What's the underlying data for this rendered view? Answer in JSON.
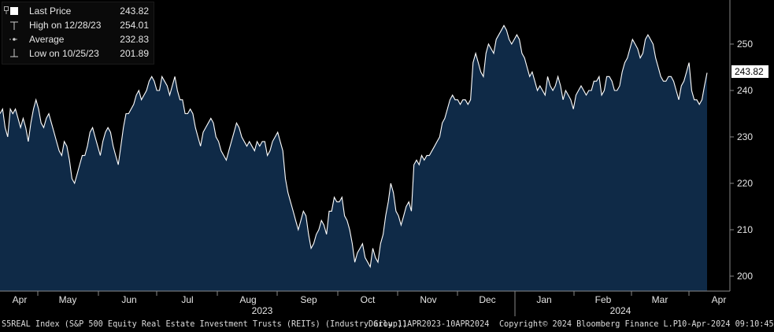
{
  "legend": {
    "last_price_label": "Last Price",
    "last_price_value": "243.82",
    "high_label": "High on 12/28/23",
    "high_value": "254.01",
    "average_label": "Average",
    "average_value": "232.83",
    "low_label": "Low on 10/25/23",
    "low_value": "201.89"
  },
  "last_tag": "243.82",
  "footer": {
    "title": "S5REAL Index (S&P 500 Equity Real Estate Investment Trusts (REITs) (Industry Group))",
    "range": "Daily 11APR2023-10APR2024",
    "copyright": "Copyright© 2024 Bloomberg Finance L.P.",
    "timestamp": "10-Apr-2024 09:10:45"
  },
  "colors": {
    "area_fill": "#0f2a47",
    "line": "#ffffff",
    "background": "#000000",
    "grid": "#4a4a4a"
  },
  "chart_data": {
    "type": "area",
    "ylim": [
      195,
      260
    ],
    "yticks": [
      200,
      210,
      220,
      230,
      240,
      250
    ],
    "month_labels": [
      "Apr",
      "May",
      "Jun",
      "Jul",
      "Aug",
      "Sep",
      "Oct",
      "Nov",
      "Dec",
      "Jan",
      "Feb",
      "Mar",
      "Apr"
    ],
    "year_labels": [
      "2023",
      "2024"
    ],
    "grid": false,
    "series": [
      {
        "values": [
          235,
          236,
          232,
          230,
          236,
          235,
          236,
          234,
          232,
          234,
          232,
          229,
          233,
          236,
          238,
          236,
          233,
          232,
          234,
          235,
          233,
          231,
          229,
          227,
          226,
          229,
          228,
          225,
          221,
          220,
          222,
          224,
          226,
          226,
          228,
          231,
          232,
          230,
          228,
          226,
          229,
          231,
          232,
          231,
          228,
          226,
          224,
          228,
          232,
          235,
          235,
          236,
          237,
          239,
          240,
          238,
          239,
          240,
          242,
          243,
          242,
          240,
          240,
          243,
          242,
          241,
          239,
          241,
          243,
          240,
          238,
          238,
          235,
          235,
          236,
          235,
          232,
          230,
          228,
          231,
          232,
          233,
          234,
          233,
          230,
          229,
          227,
          226,
          225,
          227,
          229,
          231,
          233,
          232,
          230,
          229,
          228,
          229,
          228,
          227,
          229,
          228,
          229,
          229,
          226,
          227,
          229,
          230,
          231,
          229,
          227,
          221,
          218,
          216,
          214,
          212,
          210,
          212,
          214,
          213,
          209,
          206,
          207,
          209,
          210,
          212,
          211,
          209,
          214,
          214,
          217,
          216,
          216,
          217,
          213,
          212,
          210,
          207,
          203,
          205,
          206,
          207,
          204,
          203,
          202,
          206,
          204,
          203,
          207,
          209,
          213,
          216,
          220,
          218,
          214,
          213,
          211,
          213,
          215,
          216,
          214,
          224,
          225,
          224,
          226,
          225,
          226,
          226,
          227,
          228,
          229,
          230,
          233,
          234,
          236,
          238,
          239,
          238,
          238,
          237,
          238,
          238,
          237,
          238,
          246,
          248,
          246,
          244,
          243,
          248,
          250,
          249,
          248,
          251,
          252,
          253,
          254,
          253,
          251,
          250,
          251,
          252,
          251,
          248,
          247,
          245,
          243,
          244,
          242,
          240,
          241,
          240,
          239,
          243,
          241,
          240,
          241,
          243,
          241,
          238,
          240,
          239,
          238,
          236,
          239,
          240,
          241,
          240,
          239,
          240,
          240,
          242,
          242,
          243,
          239,
          240,
          243,
          243,
          242,
          240,
          240,
          241,
          244,
          246,
          247,
          249,
          251,
          250,
          249,
          247,
          248,
          251,
          252,
          251,
          250,
          247,
          245,
          243,
          242,
          242,
          243,
          243,
          242,
          240,
          238,
          241,
          242,
          244,
          246,
          240,
          238,
          238,
          237,
          238,
          241,
          243.82
        ]
      }
    ]
  }
}
